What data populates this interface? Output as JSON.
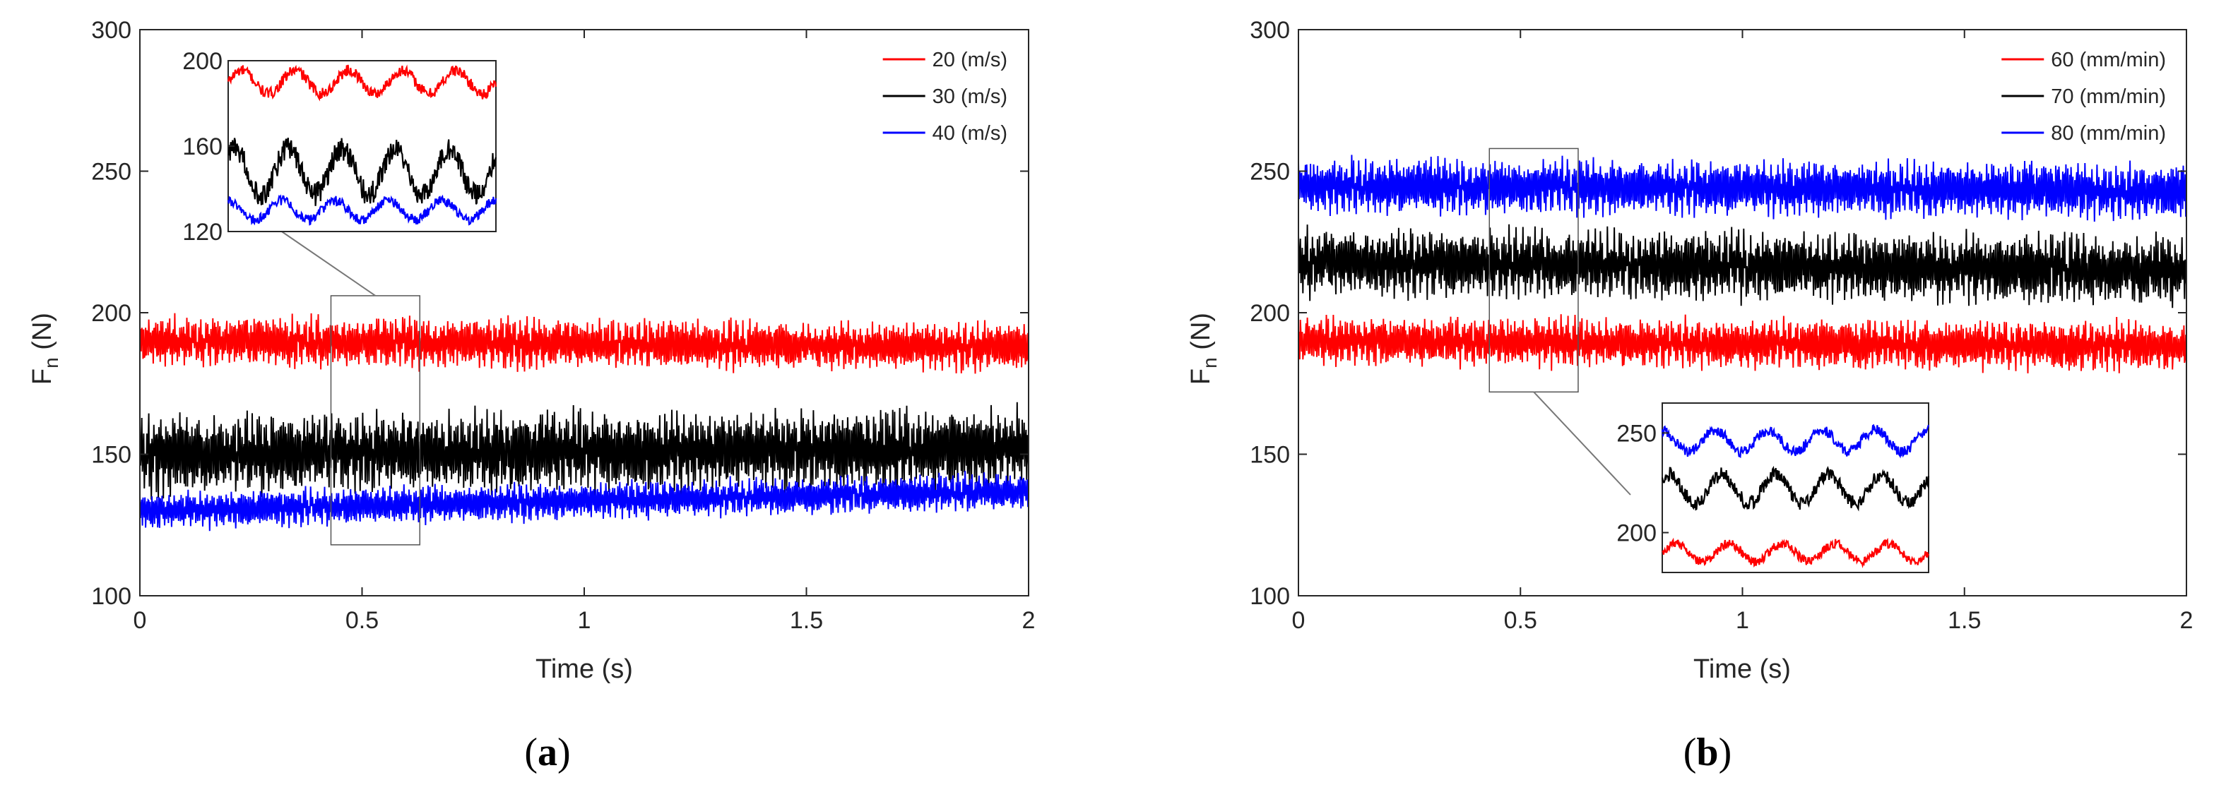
{
  "chart_data": [
    {
      "type": "line",
      "panel_label": "a",
      "xlabel": "Time (s)",
      "ylabel_main": "F",
      "ylabel_sub": "n",
      "ylabel_unit": "(N)",
      "xlim": [
        0,
        2
      ],
      "ylim": [
        100,
        300
      ],
      "xticks": [
        0,
        0.5,
        1,
        1.5,
        2
      ],
      "xtick_labels": [
        "0",
        "0.5",
        "1",
        "1.5",
        "2"
      ],
      "yticks": [
        100,
        150,
        200,
        250,
        300
      ],
      "ytick_labels": [
        "100",
        "150",
        "200",
        "250",
        "300"
      ],
      "legend_position": "top-right",
      "series": [
        {
          "name": "20 (m/s)",
          "color": "#ff0000",
          "mean_start": 190,
          "mean_end": 188,
          "amplitude": 8
        },
        {
          "name": "30 (m/s)",
          "color": "#000000",
          "mean_start": 150,
          "mean_end": 152,
          "amplitude": 13
        },
        {
          "name": "40 (m/s)",
          "color": "#0000ff",
          "mean_start": 130,
          "mean_end": 137,
          "amplitude": 6
        }
      ],
      "zoom_box": {
        "x": [
          0.43,
          0.63
        ],
        "y": [
          118,
          206
        ]
      },
      "inset": {
        "ylim": [
          120,
          200
        ],
        "yticks": [
          120,
          160,
          200
        ],
        "ytick_labels": [
          "120",
          "160",
          "200"
        ],
        "series_means": [
          190,
          148,
          130
        ],
        "series_amplitudes": [
          6,
          12,
          5
        ]
      }
    },
    {
      "type": "line",
      "panel_label": "b",
      "xlabel": "Time (s)",
      "ylabel_main": "F",
      "ylabel_sub": "n",
      "ylabel_unit": "(N)",
      "xlim": [
        0,
        2
      ],
      "ylim": [
        100,
        300
      ],
      "xticks": [
        0,
        0.5,
        1,
        1.5,
        2
      ],
      "xtick_labels": [
        "0",
        "0.5",
        "1",
        "1.5",
        "2"
      ],
      "yticks": [
        100,
        150,
        200,
        250,
        300
      ],
      "ytick_labels": [
        "100",
        "150",
        "200",
        "250",
        "300"
      ],
      "legend_position": "top-right",
      "series": [
        {
          "name": "60 (mm/min)",
          "color": "#ff0000",
          "mean_start": 190,
          "mean_end": 188,
          "amplitude": 8
        },
        {
          "name": "70 (mm/min)",
          "color": "#000000",
          "mean_start": 218,
          "mean_end": 215,
          "amplitude": 11
        },
        {
          "name": "80 (mm/min)",
          "color": "#0000ff",
          "mean_start": 245,
          "mean_end": 243,
          "amplitude": 9
        }
      ],
      "zoom_box": {
        "x": [
          0.43,
          0.63
        ],
        "y": [
          172,
          258
        ]
      },
      "inset": {
        "ylim": [
          180,
          265
        ],
        "yticks": [
          200,
          250
        ],
        "ytick_labels": [
          "200",
          "250"
        ],
        "series_means": [
          190,
          222,
          246
        ],
        "series_amplitudes": [
          5,
          8,
          6
        ]
      }
    }
  ]
}
